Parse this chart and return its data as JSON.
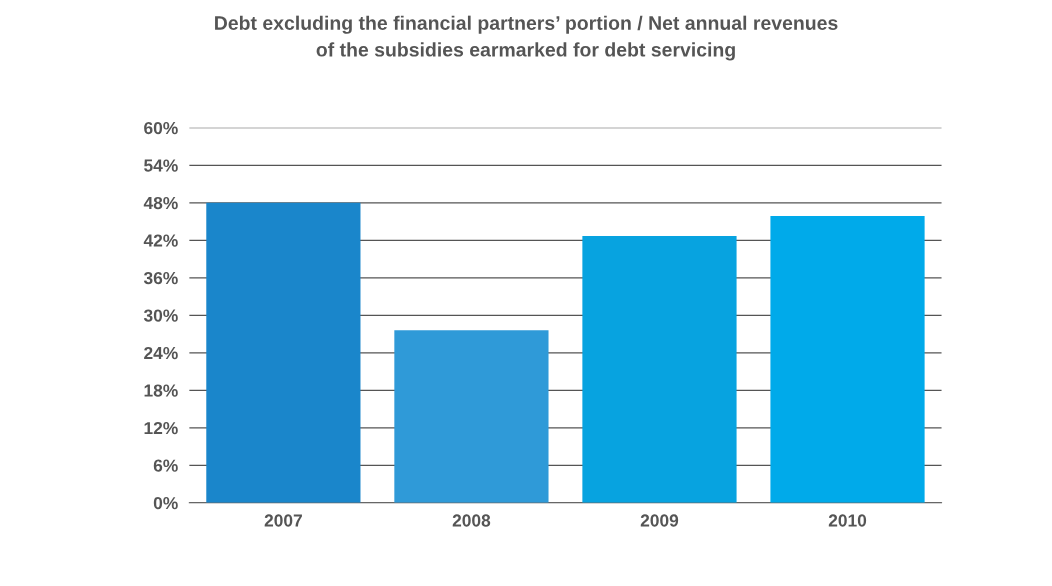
{
  "chart_data": {
    "type": "bar",
    "title": "Debt excluding the financial partners’ portion / Net annual revenues\nof the subsidies earmarked for debt servicing",
    "categories": [
      "2007",
      "2008",
      "2009",
      "2010"
    ],
    "values": [
      48,
      27.6,
      42.7,
      45.9
    ],
    "colors": [
      "#1a86cb",
      "#2f9ad8",
      "#07a3e0",
      "#00aaea"
    ],
    "ylim": [
      0,
      60
    ],
    "yticks": [
      {
        "value": 0,
        "label": "0%"
      },
      {
        "value": 6,
        "label": "6%"
      },
      {
        "value": 12,
        "label": "12%"
      },
      {
        "value": 18,
        "label": "18%"
      },
      {
        "value": 24,
        "label": "24%"
      },
      {
        "value": 30,
        "label": "30%"
      },
      {
        "value": 36,
        "label": "36%"
      },
      {
        "value": 42,
        "label": "42%"
      },
      {
        "value": 48,
        "label": "48%"
      },
      {
        "value": 54,
        "label": "54%"
      },
      {
        "value": 60,
        "label": "60%"
      }
    ],
    "grid": "y"
  }
}
